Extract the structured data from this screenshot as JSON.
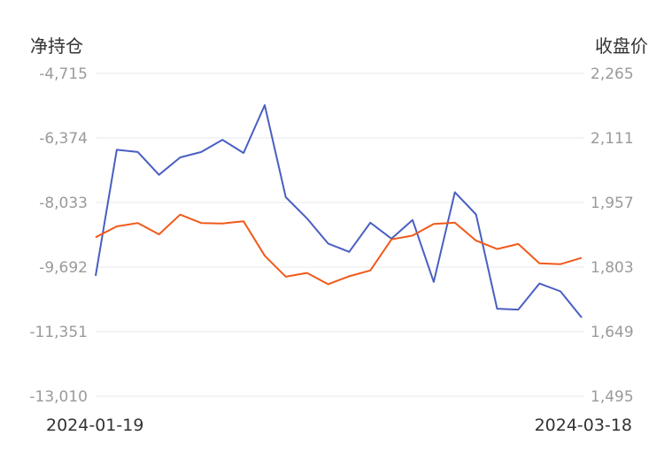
{
  "chart_data": {
    "type": "line",
    "left_axis_title": "净持仓",
    "right_axis_title": "收盘价",
    "y_left_ticks": [
      "-4,715",
      "-6,374",
      "-8,033",
      "-9,692",
      "-11,351",
      "-13,010"
    ],
    "y_right_ticks": [
      "2,265",
      "2,111",
      "1,957",
      "1,803",
      "1,649",
      "1,495"
    ],
    "y_left_range": [
      -13010,
      -4715
    ],
    "y_right_range": [
      1495,
      2265
    ],
    "x_start_label": "2024-01-19",
    "x_end_label": "2024-03-18",
    "grid": true,
    "series": [
      {
        "axis": "left",
        "color": "#4a5fc1",
        "values": [
          -9916,
          -6678,
          -6736,
          -7321,
          -6874,
          -6736,
          -6422,
          -6760,
          -5532,
          -7897,
          -8440,
          -9087,
          -9302,
          -8552,
          -8963,
          -8484,
          -10073,
          -7769,
          -8339,
          -10762,
          -10785,
          -10115,
          -10317,
          -10990
        ]
      },
      {
        "axis": "right",
        "color": "#f05a1a",
        "values": [
          1874,
          1900,
          1908,
          1881,
          1928,
          1908,
          1907,
          1912,
          1830,
          1780,
          1789,
          1762,
          1781,
          1795,
          1869,
          1878,
          1906,
          1909,
          1866,
          1846,
          1858,
          1812,
          1810,
          1825
        ]
      }
    ]
  }
}
